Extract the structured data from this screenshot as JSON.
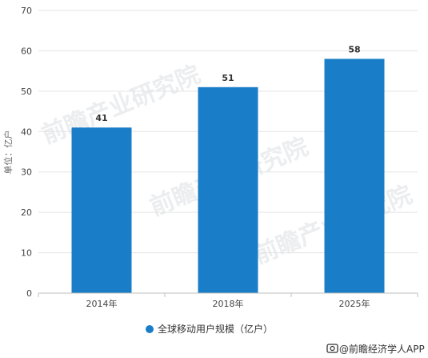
{
  "chart_data": {
    "type": "bar",
    "categories": [
      "2014年",
      "2018年",
      "2025年"
    ],
    "series": [
      {
        "name": "全球移动用户规模（亿户）",
        "values": [
          41,
          51,
          58
        ],
        "color": "#1a7dc7"
      }
    ],
    "ylabel": "单位：亿户",
    "ylim": [
      0,
      70
    ],
    "yticks": [
      0,
      10,
      20,
      30,
      40,
      50,
      60,
      70
    ],
    "grid": true,
    "legend": "bottom-center"
  },
  "credit": "@前瞻经济学人APP",
  "credit_icon": "camera-icon",
  "watermark": "前瞻产业研究院"
}
